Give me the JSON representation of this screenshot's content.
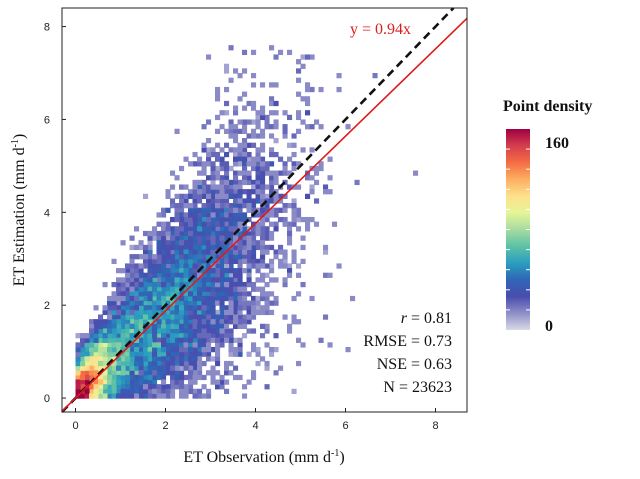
{
  "chart_data": {
    "type": "heatmap",
    "subtype": "density scatter",
    "xlabel_main": "ET Observation (mm d",
    "xlabel_sup": "-1",
    "xlabel_end": ")",
    "ylabel_main": "ET Estimation (mm d",
    "ylabel_sup": "-1",
    "ylabel_end": ")",
    "xlim": [
      -0.3,
      8.7
    ],
    "ylim": [
      -0.3,
      8.4
    ],
    "x_ticks": [
      0,
      2,
      4,
      6,
      8
    ],
    "y_ticks": [
      0,
      2,
      4,
      6,
      8
    ],
    "x_tick_labels": [
      "0",
      "2",
      "4",
      "6",
      "8"
    ],
    "y_tick_labels": [
      "0",
      "2",
      "4",
      "6",
      "8"
    ],
    "grid": false,
    "lines": [
      {
        "name": "1:1",
        "slope": 1.0,
        "style": "dashed",
        "color": "#111111"
      },
      {
        "name": "fit",
        "slope": 0.94,
        "style": "solid",
        "color": "#e0191b"
      }
    ],
    "fit_label": "y = 0.94x",
    "stats": {
      "r_symbol": "r",
      "r_text": " = 0.81",
      "rmse_text": "RMSE = 0.73",
      "nse_text": "NSE = 0.63",
      "n_text": "N = 23623"
    },
    "colorbar": {
      "title": "Point  density",
      "min_label": "0",
      "max_label": "160",
      "min": 0,
      "max": 160,
      "colors": [
        "#d9d9e6",
        "#8e8fc8",
        "#4a4cae",
        "#2f66b6",
        "#2a9ec0",
        "#5dc2a6",
        "#a6dba0",
        "#e6f598",
        "#fee08b",
        "#fdae61",
        "#f46d43",
        "#d53e4f",
        "#9e0142"
      ]
    },
    "density_model": {
      "n": 23623,
      "x_mean": 1.8,
      "y_mean": 1.7,
      "r": 0.81,
      "bin_size": 0.1
    }
  }
}
